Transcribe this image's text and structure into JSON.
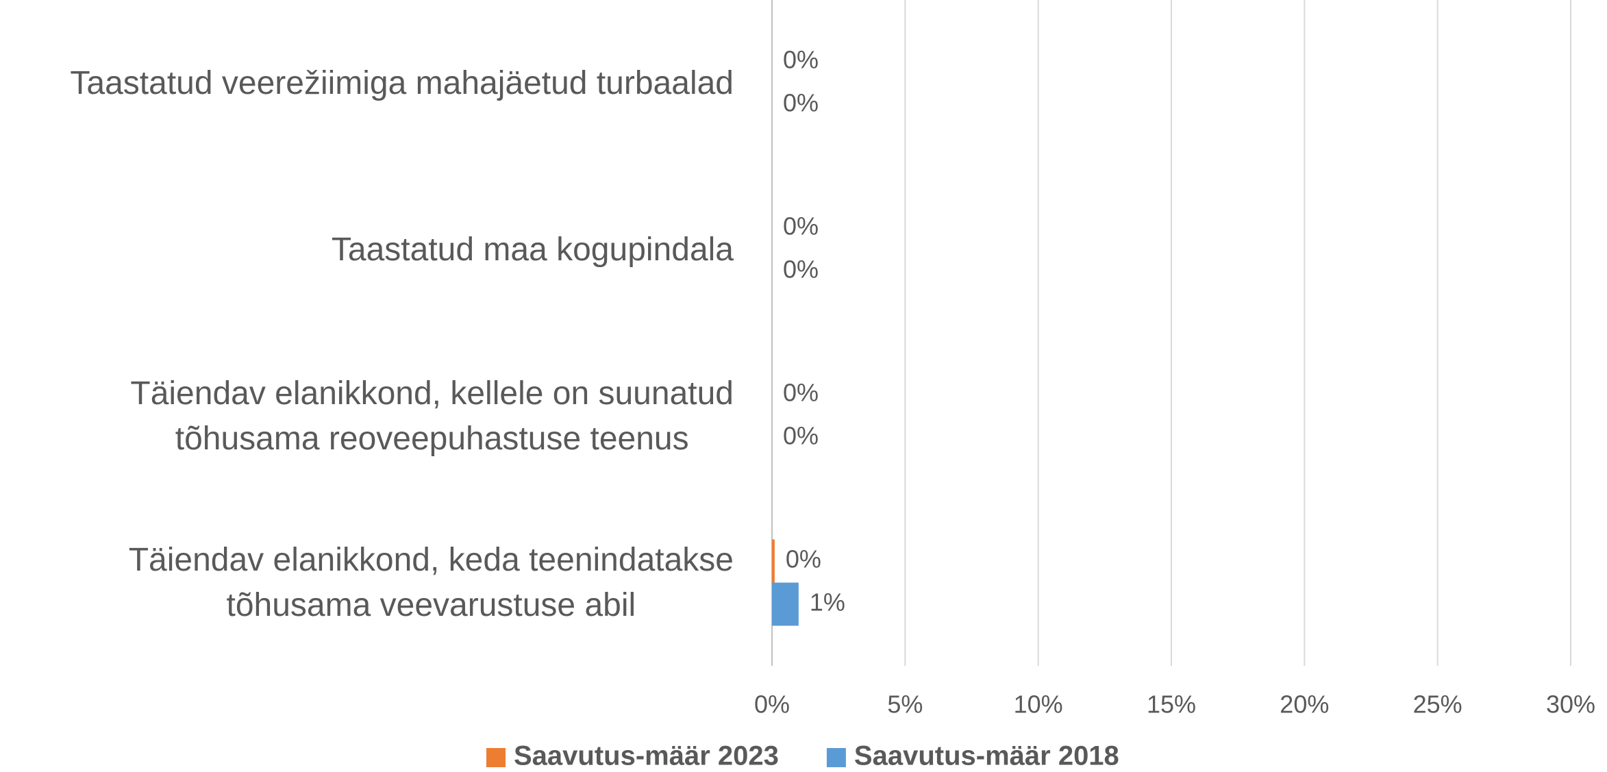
{
  "chart_data": {
    "type": "hbar",
    "categories": [
      "Taastatud veerežiimiga mahajäetud turbaalad",
      "Taastatud maa kogupindala",
      "Täiendav elanikkond, kellele on suunatud\ntõhusama reoveepuhastuse teenus",
      "Täiendav elanikkond, keda teenindatakse\ntõhusama veevarustuse abil"
    ],
    "series": [
      {
        "name": "Saavutus-määr 2023",
        "color": "#ed7d31",
        "values": [
          0,
          0,
          0,
          0.1
        ],
        "value_labels": [
          "0%",
          "0%",
          "0%",
          "0%"
        ]
      },
      {
        "name": "Saavutus-määr 2018",
        "color": "#5b9bd5",
        "values": [
          0,
          0,
          0,
          1.0
        ],
        "value_labels": [
          "0%",
          "0%",
          "0%",
          "1%"
        ]
      }
    ],
    "xlim": [
      0,
      30
    ],
    "xticks": [
      {
        "value": 0,
        "label": "0%"
      },
      {
        "value": 5,
        "label": "5%"
      },
      {
        "value": 10,
        "label": "10%"
      },
      {
        "value": 15,
        "label": "15%"
      },
      {
        "value": 20,
        "label": "20%"
      },
      {
        "value": 25,
        "label": "25%"
      },
      {
        "value": 30,
        "label": "30%"
      }
    ],
    "grid": true,
    "legend": "bottom"
  }
}
